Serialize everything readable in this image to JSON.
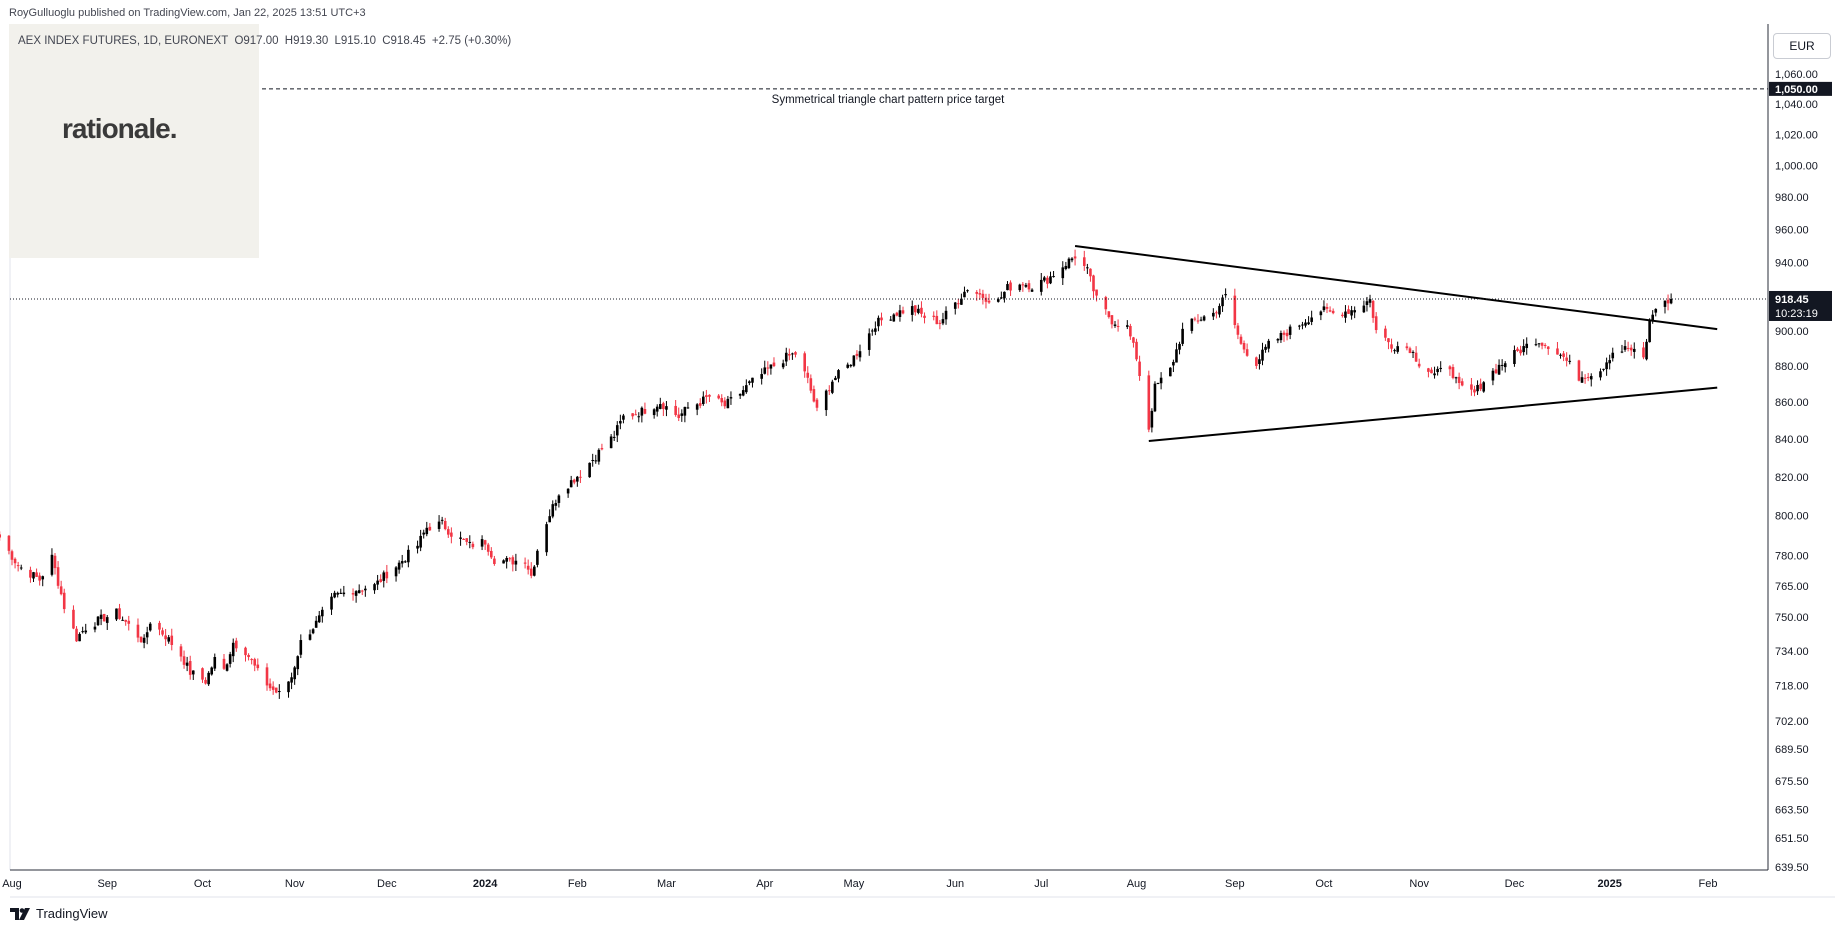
{
  "header": {
    "published": "RoyGulluoglu published on TradingView.com, Jan 22, 2025 13:51 UTC+3",
    "symbol": "AEX INDEX FUTURES, 1D, EURONEXT",
    "open": "O917.00",
    "high": "H919.30",
    "low": "L915.10",
    "close": "C918.45",
    "change": "+2.75 (+0.30%)"
  },
  "watermark": {
    "text": "rationale."
  },
  "currency": "EUR",
  "footer": {
    "brand": "TradingView",
    "icon": "tradingview-logo-icon"
  },
  "colors": {
    "up": "#000000",
    "down": "#f23645",
    "trendline": "#000000",
    "label_bg": "#131722"
  },
  "chart_data": {
    "type": "candlestick",
    "title": "",
    "y_axis": {
      "side": "right",
      "scale": "logarithmic",
      "ticks": [
        "1,060.00",
        "1,040.00",
        "1,020.00",
        "1,000.00",
        "980.00",
        "960.00",
        "940.00",
        "900.00",
        "880.00",
        "860.00",
        "840.00",
        "820.00",
        "800.00",
        "780.00",
        "765.00",
        "750.00",
        "734.00",
        "718.00",
        "702.00",
        "689.50",
        "675.50",
        "663.50",
        "651.50",
        "639.50"
      ],
      "ylim": [
        639.5,
        1070
      ]
    },
    "x_axis": {
      "ticks": [
        {
          "label": "Aug",
          "date": "2023-08-01",
          "bold": false
        },
        {
          "label": "Sep",
          "date": "2023-09-01",
          "bold": false
        },
        {
          "label": "Oct",
          "date": "2023-10-02",
          "bold": false
        },
        {
          "label": "Nov",
          "date": "2023-11-01",
          "bold": false
        },
        {
          "label": "Dec",
          "date": "2023-12-01",
          "bold": false
        },
        {
          "label": "2024",
          "date": "2024-01-02",
          "bold": true
        },
        {
          "label": "Feb",
          "date": "2024-02-01",
          "bold": false
        },
        {
          "label": "Mar",
          "date": "2024-03-01",
          "bold": false
        },
        {
          "label": "Apr",
          "date": "2024-04-02",
          "bold": false
        },
        {
          "label": "May",
          "date": "2024-05-01",
          "bold": false
        },
        {
          "label": "Jun",
          "date": "2024-06-03",
          "bold": false
        },
        {
          "label": "Jul",
          "date": "2024-07-01",
          "bold": false
        },
        {
          "label": "Aug",
          "date": "2024-08-01",
          "bold": false
        },
        {
          "label": "Sep",
          "date": "2024-09-02",
          "bold": false
        },
        {
          "label": "Oct",
          "date": "2024-10-01",
          "bold": false
        },
        {
          "label": "Nov",
          "date": "2024-11-01",
          "bold": false
        },
        {
          "label": "Dec",
          "date": "2024-12-02",
          "bold": false
        },
        {
          "label": "2025",
          "date": "2025-01-02",
          "bold": true
        },
        {
          "label": "Feb",
          "date": "2025-02-03",
          "bold": false
        }
      ]
    },
    "price_series": {
      "start_date": "2023-07-28",
      "end_date": "2025-01-22",
      "points": [
        [
          "2023-07-28",
          789
        ],
        [
          "2023-08-03",
          775
        ],
        [
          "2023-08-10",
          768
        ],
        [
          "2023-08-14",
          779
        ],
        [
          "2023-08-18",
          755
        ],
        [
          "2023-08-22",
          740
        ],
        [
          "2023-08-25",
          745
        ],
        [
          "2023-08-30",
          749
        ],
        [
          "2023-09-04",
          752
        ],
        [
          "2023-09-08",
          746
        ],
        [
          "2023-09-13",
          738
        ],
        [
          "2023-09-15",
          748
        ],
        [
          "2023-09-20",
          741
        ],
        [
          "2023-09-25",
          732
        ],
        [
          "2023-09-28",
          724
        ],
        [
          "2023-10-03",
          720
        ],
        [
          "2023-10-06",
          730
        ],
        [
          "2023-10-09",
          725
        ],
        [
          "2023-10-12",
          738
        ],
        [
          "2023-10-16",
          734
        ],
        [
          "2023-10-20",
          724
        ],
        [
          "2023-10-24",
          717
        ],
        [
          "2023-10-27",
          714
        ],
        [
          "2023-10-31",
          722
        ],
        [
          "2023-11-03",
          738
        ],
        [
          "2023-11-08",
          747
        ],
        [
          "2023-11-14",
          760
        ],
        [
          "2023-11-20",
          763
        ],
        [
          "2023-11-27",
          765
        ],
        [
          "2023-12-01",
          771
        ],
        [
          "2023-12-05",
          776
        ],
        [
          "2023-12-11",
          785
        ],
        [
          "2023-12-14",
          794
        ],
        [
          "2023-12-19",
          796
        ],
        [
          "2023-12-22",
          791
        ],
        [
          "2023-12-28",
          785
        ],
        [
          "2024-01-02",
          787
        ],
        [
          "2024-01-05",
          778
        ],
        [
          "2024-01-10",
          777
        ],
        [
          "2024-01-15",
          778
        ],
        [
          "2024-01-17",
          770
        ],
        [
          "2024-01-19",
          783
        ],
        [
          "2024-01-22",
          797
        ],
        [
          "2024-01-26",
          812
        ],
        [
          "2024-02-02",
          822
        ],
        [
          "2024-02-08",
          833
        ],
        [
          "2024-02-13",
          842
        ],
        [
          "2024-02-16",
          852
        ],
        [
          "2024-02-22",
          855
        ],
        [
          "2024-02-28",
          860
        ],
        [
          "2024-03-05",
          852
        ],
        [
          "2024-03-08",
          857
        ],
        [
          "2024-03-12",
          860
        ],
        [
          "2024-03-15",
          863
        ],
        [
          "2024-03-20",
          858
        ],
        [
          "2024-03-25",
          865
        ],
        [
          "2024-03-28",
          870
        ],
        [
          "2024-04-03",
          878
        ],
        [
          "2024-04-09",
          885
        ],
        [
          "2024-04-12",
          887
        ],
        [
          "2024-04-16",
          872
        ],
        [
          "2024-04-19",
          855
        ],
        [
          "2024-04-24",
          872
        ],
        [
          "2024-04-29",
          880
        ],
        [
          "2024-05-03",
          890
        ],
        [
          "2024-05-08",
          904
        ],
        [
          "2024-05-14",
          910
        ],
        [
          "2024-05-20",
          913
        ],
        [
          "2024-05-24",
          908
        ],
        [
          "2024-05-29",
          905
        ],
        [
          "2024-06-03",
          916
        ],
        [
          "2024-06-07",
          925
        ],
        [
          "2024-06-12",
          920
        ],
        [
          "2024-06-17",
          917
        ],
        [
          "2024-06-20",
          925
        ],
        [
          "2024-06-25",
          928
        ],
        [
          "2024-06-28",
          926
        ],
        [
          "2024-07-03",
          930
        ],
        [
          "2024-07-08",
          938
        ],
        [
          "2024-07-12",
          944
        ],
        [
          "2024-07-16",
          935
        ],
        [
          "2024-07-19",
          918
        ],
        [
          "2024-07-24",
          906
        ],
        [
          "2024-07-29",
          902
        ],
        [
          "2024-08-01",
          885
        ],
        [
          "2024-08-05",
          846
        ],
        [
          "2024-08-07",
          868
        ],
        [
          "2024-08-12",
          878
        ],
        [
          "2024-08-16",
          900
        ],
        [
          "2024-08-20",
          906
        ],
        [
          "2024-08-26",
          910
        ],
        [
          "2024-08-30",
          920
        ],
        [
          "2024-09-04",
          892
        ],
        [
          "2024-09-09",
          882
        ],
        [
          "2024-09-13",
          892
        ],
        [
          "2024-09-18",
          898
        ],
        [
          "2024-09-24",
          905
        ],
        [
          "2024-09-30",
          912
        ],
        [
          "2024-10-04",
          910
        ],
        [
          "2024-10-10",
          912
        ],
        [
          "2024-10-16",
          918
        ],
        [
          "2024-10-18",
          900
        ],
        [
          "2024-10-23",
          892
        ],
        [
          "2024-10-29",
          890
        ],
        [
          "2024-11-01",
          882
        ],
        [
          "2024-11-06",
          875
        ],
        [
          "2024-11-11",
          880
        ],
        [
          "2024-11-14",
          868
        ],
        [
          "2024-11-19",
          865
        ],
        [
          "2024-11-22",
          872
        ],
        [
          "2024-11-27",
          880
        ],
        [
          "2024-12-03",
          888
        ],
        [
          "2024-12-09",
          895
        ],
        [
          "2024-12-13",
          892
        ],
        [
          "2024-12-18",
          885
        ],
        [
          "2024-12-23",
          874
        ],
        [
          "2024-12-30",
          878
        ],
        [
          "2025-01-03",
          888
        ],
        [
          "2025-01-08",
          890
        ],
        [
          "2025-01-13",
          884
        ],
        [
          "2025-01-15",
          905
        ],
        [
          "2025-01-17",
          914
        ],
        [
          "2025-01-20",
          916
        ],
        [
          "2025-01-22",
          918.45
        ]
      ]
    },
    "trendlines": [
      {
        "name": "upper",
        "from": {
          "date": "2024-07-12",
          "price": 950
        },
        "to": {
          "date": "2025-02-06",
          "price": 901
        }
      },
      {
        "name": "lower",
        "from": {
          "date": "2024-08-05",
          "price": 839
        },
        "to": {
          "date": "2025-02-06",
          "price": 868
        }
      }
    ],
    "horizontal_line": {
      "price": 1050,
      "style": "dashed",
      "label": "Symmetrical triangle chart pattern price target",
      "price_label": "1,050.00"
    },
    "last_price": {
      "price": 918.45,
      "label": "918.45",
      "countdown": "10:23:19",
      "style": "dotted"
    }
  }
}
